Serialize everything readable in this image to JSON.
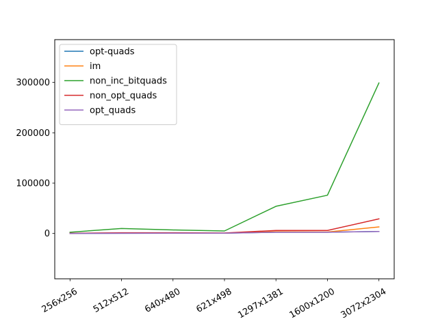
{
  "chart_data": {
    "type": "line",
    "categories": [
      "256x256",
      "512x512",
      "640x480",
      "621x498",
      "1297x1381",
      "1600x1200",
      "3072x2304"
    ],
    "ylim": [
      -90000,
      385000
    ],
    "yticks": [
      0,
      100000,
      200000,
      300000
    ],
    "ytick_labels": [
      "0",
      "100000",
      "200000",
      "300000"
    ],
    "xtick_rotation": 30,
    "grid": false,
    "legend_position": "top-left",
    "series": [
      {
        "name": "opt-quads",
        "color": "#1f77b4",
        "values": [
          100,
          400,
          600,
          600,
          2500,
          2500,
          4000
        ]
      },
      {
        "name": "im",
        "color": "#ff7f0e",
        "values": [
          300,
          1000,
          1000,
          800,
          3500,
          3000,
          13000
        ]
      },
      {
        "name": "non_inc_bitquads",
        "color": "#2ca02c",
        "values": [
          2500,
          10000,
          7000,
          5000,
          54000,
          76000,
          299000
        ]
      },
      {
        "name": "non_opt_quads",
        "color": "#d62728",
        "values": [
          500,
          1500,
          1500,
          1000,
          6000,
          6000,
          29000
        ]
      },
      {
        "name": "opt_quads",
        "color": "#9467bd",
        "values": [
          100,
          400,
          600,
          600,
          2500,
          2500,
          4000
        ]
      }
    ]
  }
}
